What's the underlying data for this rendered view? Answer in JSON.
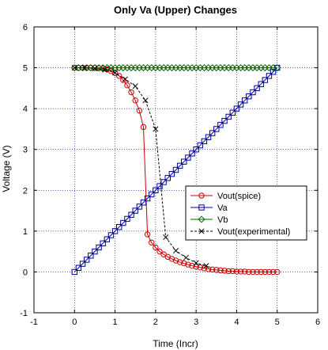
{
  "chart_data": {
    "type": "line",
    "title": "Only Va (Upper) Changes",
    "xlabel": "Time (Incr)",
    "ylabel": "Voltage (V)",
    "xlim": [
      -1,
      6
    ],
    "ylim": [
      -1,
      6
    ],
    "xticks": [
      "-1",
      "0",
      "1",
      "2",
      "3",
      "4",
      "5",
      "6"
    ],
    "yticks": [
      "-1",
      "0",
      "1",
      "2",
      "3",
      "4",
      "5",
      "6"
    ],
    "grid": true,
    "legend_position": "center-right",
    "series": [
      {
        "name": "Vout(spice)",
        "color": "#cc0000",
        "marker": "circle",
        "line": "solid",
        "x": [
          0,
          0.1,
          0.2,
          0.3,
          0.4,
          0.5,
          0.6,
          0.7,
          0.8,
          0.9,
          1.0,
          1.1,
          1.2,
          1.3,
          1.4,
          1.5,
          1.6,
          1.7,
          1.8,
          1.9,
          2.0,
          2.1,
          2.2,
          2.3,
          2.4,
          2.5,
          2.6,
          2.7,
          2.8,
          2.9,
          3.0,
          3.1,
          3.2,
          3.3,
          3.4,
          3.5,
          3.6,
          3.7,
          3.8,
          3.9,
          4.0,
          4.1,
          4.2,
          4.3,
          4.4,
          4.5,
          4.6,
          4.7,
          4.8,
          4.9,
          5.0
        ],
        "y": [
          5.0,
          5.0,
          5.0,
          5.0,
          5.0,
          5.0,
          4.99,
          4.98,
          4.96,
          4.92,
          4.87,
          4.8,
          4.7,
          4.57,
          4.4,
          4.2,
          3.95,
          3.55,
          0.92,
          0.72,
          0.6,
          0.5,
          0.43,
          0.37,
          0.32,
          0.28,
          0.24,
          0.21,
          0.18,
          0.15,
          0.13,
          0.11,
          0.09,
          0.07,
          0.06,
          0.05,
          0.04,
          0.03,
          0.02,
          0.02,
          0.01,
          0.01,
          0.01,
          0.0,
          0.0,
          0.0,
          0.0,
          0.0,
          0.0,
          0.0,
          0.0
        ]
      },
      {
        "name": "Va",
        "color": "#000099",
        "marker": "square",
        "line": "solid",
        "x": [
          0,
          0.1,
          0.2,
          0.3,
          0.4,
          0.5,
          0.6,
          0.7,
          0.8,
          0.9,
          1.0,
          1.1,
          1.2,
          1.3,
          1.4,
          1.5,
          1.6,
          1.7,
          1.8,
          1.9,
          2.0,
          2.1,
          2.2,
          2.3,
          2.4,
          2.5,
          2.6,
          2.7,
          2.8,
          2.9,
          3.0,
          3.1,
          3.2,
          3.3,
          3.4,
          3.5,
          3.6,
          3.7,
          3.8,
          3.9,
          4.0,
          4.1,
          4.2,
          4.3,
          4.4,
          4.5,
          4.6,
          4.7,
          4.8,
          4.9,
          5.0
        ],
        "y": [
          0,
          0.1,
          0.2,
          0.3,
          0.4,
          0.5,
          0.6,
          0.7,
          0.8,
          0.9,
          1.0,
          1.1,
          1.2,
          1.3,
          1.4,
          1.5,
          1.6,
          1.7,
          1.8,
          1.9,
          2.0,
          2.1,
          2.2,
          2.3,
          2.4,
          2.5,
          2.6,
          2.7,
          2.8,
          2.9,
          3.0,
          3.1,
          3.2,
          3.3,
          3.4,
          3.5,
          3.6,
          3.7,
          3.8,
          3.9,
          4.0,
          4.1,
          4.2,
          4.3,
          4.4,
          4.5,
          4.6,
          4.7,
          4.8,
          4.9,
          5.0
        ]
      },
      {
        "name": "Vb",
        "color": "#006600",
        "marker": "diamond",
        "line": "solid",
        "x": [
          0,
          0.1,
          0.2,
          0.3,
          0.4,
          0.5,
          0.6,
          0.7,
          0.8,
          0.9,
          1.0,
          1.1,
          1.2,
          1.3,
          1.4,
          1.5,
          1.6,
          1.7,
          1.8,
          1.9,
          2.0,
          2.1,
          2.2,
          2.3,
          2.4,
          2.5,
          2.6,
          2.7,
          2.8,
          2.9,
          3.0,
          3.1,
          3.2,
          3.3,
          3.4,
          3.5,
          3.6,
          3.7,
          3.8,
          3.9,
          4.0,
          4.1,
          4.2,
          4.3,
          4.4,
          4.5,
          4.6,
          4.7,
          4.8,
          4.9,
          5.0
        ],
        "y": [
          5,
          5,
          5,
          5,
          5,
          5,
          5,
          5,
          5,
          5,
          5,
          5,
          5,
          5,
          5,
          5,
          5,
          5,
          5,
          5,
          5,
          5,
          5,
          5,
          5,
          5,
          5,
          5,
          5,
          5,
          5,
          5,
          5,
          5,
          5,
          5,
          5,
          5,
          5,
          5,
          5,
          5,
          5,
          5,
          5,
          5,
          5,
          5,
          5,
          5,
          5
        ]
      },
      {
        "name": "Vout(experimental)",
        "color": "#000000",
        "marker": "x",
        "line": "dashed",
        "x": [
          0,
          0.25,
          0.5,
          0.75,
          1.0,
          1.25,
          1.5,
          1.75,
          2.0,
          2.25,
          2.5,
          2.75,
          3.0,
          3.25
        ],
        "y": [
          5.0,
          5.0,
          4.98,
          4.95,
          4.88,
          4.72,
          4.55,
          4.2,
          3.5,
          0.85,
          0.52,
          0.35,
          0.22,
          0.15
        ]
      }
    ]
  }
}
